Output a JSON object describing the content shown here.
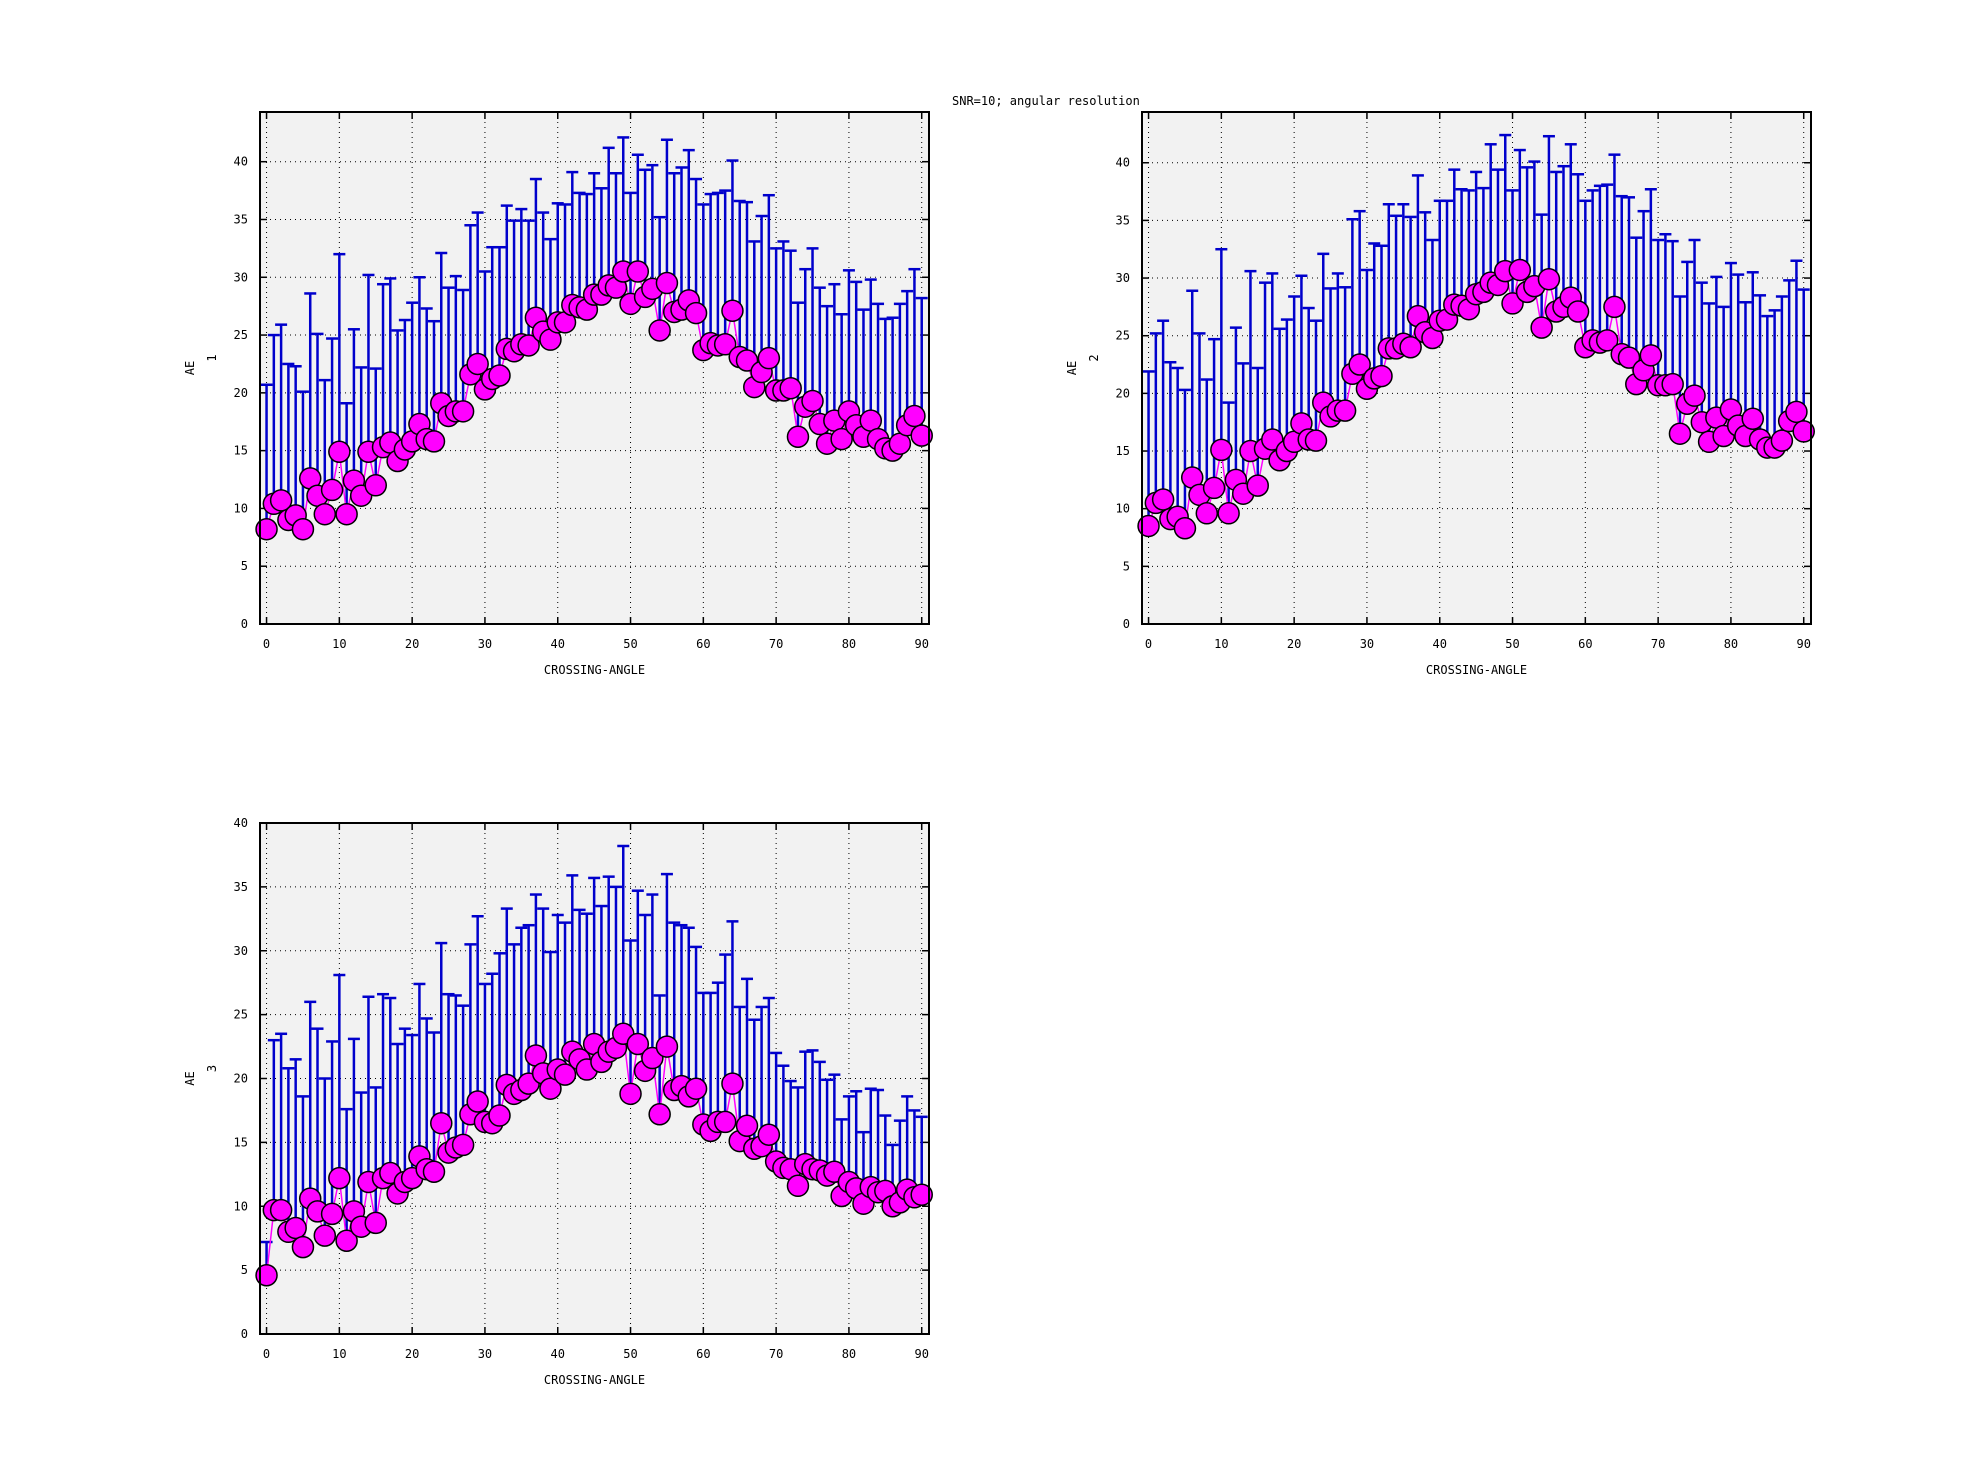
{
  "title": "SNR=10; angular resolution",
  "colors": {
    "plot_bg": "#f2f2f2",
    "errorbar": "#0000cc",
    "marker": "#ff00ff",
    "marker_edge": "#000000",
    "line": "#ff00ff"
  },
  "chart_data": [
    {
      "type": "scatter",
      "title": "",
      "xlabel": "CROSSING-ANGLE",
      "ylabel": "AE",
      "ylabel_sub": "1",
      "xlim": [
        -0.9,
        91
      ],
      "ylim": [
        0,
        44.3
      ],
      "xticks": [
        0,
        10,
        20,
        30,
        40,
        50,
        60,
        70,
        80,
        90
      ],
      "yticks": [
        0,
        5,
        10,
        15,
        20,
        25,
        30,
        35,
        40
      ],
      "grid": true,
      "mean": [
        8.2,
        10.4,
        10.7,
        9.0,
        9.4,
        8.2,
        12.6,
        11.1,
        9.5,
        11.6,
        14.9,
        9.5,
        12.4,
        11.1,
        14.9,
        12.0,
        15.3,
        15.7,
        14.1,
        15.1,
        15.8,
        17.3,
        16.0,
        15.8,
        19.1,
        18.0,
        18.4,
        18.4,
        21.6,
        22.5,
        20.3,
        21.2,
        21.5,
        23.8,
        23.6,
        24.2,
        24.1,
        26.5,
        25.3,
        24.6,
        26.1,
        26.1,
        27.6,
        27.4,
        27.2,
        28.5,
        28.5,
        29.3,
        29.1,
        30.5,
        27.7,
        30.5,
        28.3,
        29.0,
        25.4,
        29.5,
        27.0,
        27.2,
        28.0,
        26.9,
        23.7,
        24.3,
        24.1,
        24.2,
        27.1,
        23.1,
        22.8,
        20.5,
        21.8,
        23.0,
        20.2,
        20.2,
        20.4,
        16.2,
        18.8,
        19.3,
        17.3,
        15.6,
        17.6,
        16.0,
        18.4,
        17.2,
        16.2,
        17.6,
        16.0,
        15.2,
        15.0,
        15.6,
        17.2,
        18.0,
        16.3
      ],
      "upper": [
        20.7,
        25.0,
        25.9,
        22.5,
        22.3,
        20.1,
        28.6,
        25.1,
        21.1,
        24.7,
        32.0,
        19.1,
        25.5,
        22.2,
        30.2,
        22.1,
        29.4,
        29.9,
        25.4,
        26.3,
        27.8,
        30.0,
        27.3,
        26.2,
        32.1,
        29.1,
        30.1,
        28.9,
        34.5,
        35.6,
        30.5,
        32.6,
        32.6,
        36.2,
        34.9,
        35.9,
        34.9,
        38.5,
        35.6,
        33.3,
        36.4,
        36.3,
        39.1,
        37.3,
        37.2,
        39.0,
        37.7,
        41.2,
        39.0,
        42.1,
        37.3,
        40.6,
        39.3,
        39.7,
        35.2,
        41.9,
        39.0,
        39.5,
        41.0,
        38.5,
        36.3,
        37.2,
        37.3,
        37.5,
        40.1,
        36.6,
        36.5,
        33.1,
        35.3,
        37.1,
        32.5,
        33.1,
        32.3,
        27.8,
        30.7,
        32.5,
        29.1,
        27.5,
        29.4,
        26.8,
        30.6,
        29.6,
        27.2,
        29.8,
        27.7,
        26.4,
        26.5,
        27.7,
        28.8,
        30.7,
        28.2
      ]
    },
    {
      "type": "scatter",
      "title": "",
      "xlabel": "CROSSING-ANGLE",
      "ylabel": "AE",
      "ylabel_sub": "2",
      "xlim": [
        -0.9,
        91
      ],
      "ylim": [
        0,
        44.4
      ],
      "xticks": [
        0,
        10,
        20,
        30,
        40,
        50,
        60,
        70,
        80,
        90
      ],
      "yticks": [
        0,
        5,
        10,
        15,
        20,
        25,
        30,
        35,
        40
      ],
      "grid": true,
      "mean": [
        8.5,
        10.5,
        10.8,
        9.1,
        9.3,
        8.3,
        12.7,
        11.2,
        9.6,
        11.8,
        15.1,
        9.6,
        12.5,
        11.3,
        15.0,
        12.0,
        15.2,
        16.0,
        14.2,
        15.0,
        15.8,
        17.4,
        16.0,
        15.9,
        19.2,
        18.0,
        18.5,
        18.5,
        21.7,
        22.5,
        20.4,
        21.3,
        21.5,
        23.9,
        23.9,
        24.3,
        24.0,
        26.7,
        25.3,
        24.8,
        26.3,
        26.4,
        27.7,
        27.6,
        27.3,
        28.6,
        28.8,
        29.6,
        29.4,
        30.6,
        27.8,
        30.7,
        28.8,
        29.3,
        25.7,
        29.9,
        27.1,
        27.5,
        28.3,
        27.1,
        24.0,
        24.6,
        24.4,
        24.6,
        27.5,
        23.4,
        23.1,
        20.8,
        22.0,
        23.3,
        20.7,
        20.7,
        20.8,
        16.5,
        19.1,
        19.8,
        17.5,
        15.8,
        17.9,
        16.3,
        18.6,
        17.2,
        16.3,
        17.8,
        16.0,
        15.3,
        15.3,
        15.9,
        17.6,
        18.4,
        16.7
      ],
      "upper": [
        21.9,
        25.2,
        26.3,
        22.7,
        22.2,
        20.3,
        28.9,
        25.2,
        21.2,
        24.7,
        32.5,
        19.2,
        25.7,
        22.6,
        30.6,
        22.2,
        29.6,
        30.4,
        25.6,
        26.4,
        28.4,
        30.2,
        27.4,
        26.3,
        32.1,
        29.1,
        30.4,
        29.2,
        35.1,
        35.8,
        30.7,
        33.0,
        32.8,
        36.4,
        35.4,
        36.4,
        35.3,
        38.9,
        35.7,
        33.3,
        36.7,
        36.7,
        39.4,
        37.7,
        37.6,
        39.2,
        37.8,
        41.6,
        39.4,
        42.4,
        37.6,
        41.1,
        39.6,
        40.1,
        35.5,
        42.3,
        39.2,
        39.7,
        41.6,
        39.0,
        36.7,
        37.6,
        38.0,
        38.1,
        40.7,
        37.1,
        37.0,
        33.5,
        35.8,
        37.7,
        33.3,
        33.8,
        33.2,
        28.4,
        31.4,
        33.3,
        29.6,
        27.8,
        30.1,
        27.5,
        31.3,
        30.3,
        27.9,
        30.5,
        28.5,
        26.7,
        27.2,
        28.4,
        29.8,
        31.5,
        29.0
      ]
    },
    {
      "type": "scatter",
      "title": "",
      "xlabel": "CROSSING-ANGLE",
      "ylabel": "AE",
      "ylabel_sub": "3",
      "xlim": [
        -0.9,
        91
      ],
      "ylim": [
        0,
        40
      ],
      "xticks": [
        0,
        10,
        20,
        30,
        40,
        50,
        60,
        70,
        80,
        90
      ],
      "yticks": [
        0,
        5,
        10,
        15,
        20,
        25,
        30,
        35,
        40
      ],
      "grid": true,
      "mean": [
        4.6,
        9.7,
        9.7,
        8.0,
        8.3,
        6.8,
        10.6,
        9.6,
        7.7,
        9.4,
        12.2,
        7.3,
        9.6,
        8.4,
        11.9,
        8.7,
        12.2,
        12.6,
        11.0,
        11.9,
        12.2,
        13.9,
        12.9,
        12.7,
        16.5,
        14.2,
        14.6,
        14.8,
        17.2,
        18.2,
        16.6,
        16.5,
        17.1,
        19.5,
        18.8,
        19.1,
        19.6,
        21.8,
        20.4,
        19.2,
        20.7,
        20.3,
        22.1,
        21.5,
        20.7,
        22.7,
        21.3,
        22.1,
        22.4,
        23.5,
        18.8,
        22.7,
        20.6,
        21.6,
        17.2,
        22.5,
        19.1,
        19.4,
        18.6,
        19.2,
        16.4,
        15.9,
        16.6,
        16.6,
        19.6,
        15.1,
        16.3,
        14.5,
        14.7,
        15.6,
        13.5,
        13.0,
        12.9,
        11.6,
        13.3,
        12.9,
        12.8,
        12.4,
        12.7,
        10.8,
        11.9,
        11.4,
        10.2,
        11.5,
        11.1,
        11.2,
        10.0,
        10.3,
        11.3,
        10.7,
        10.9
      ],
      "upper": [
        7.2,
        23.0,
        23.5,
        20.8,
        21.5,
        18.6,
        26.0,
        23.9,
        20.0,
        22.9,
        28.1,
        17.6,
        23.1,
        18.9,
        26.4,
        19.3,
        26.6,
        26.3,
        22.7,
        23.9,
        23.4,
        27.4,
        24.7,
        23.6,
        30.6,
        26.6,
        26.5,
        25.7,
        30.5,
        32.7,
        27.4,
        28.2,
        29.8,
        33.3,
        30.5,
        31.8,
        32.0,
        34.4,
        33.3,
        29.9,
        32.8,
        32.2,
        35.9,
        33.2,
        32.9,
        35.7,
        33.5,
        35.8,
        35.0,
        38.2,
        30.8,
        34.7,
        32.8,
        34.4,
        26.5,
        36.0,
        32.2,
        32.0,
        31.8,
        30.3,
        26.7,
        26.7,
        27.5,
        29.7,
        32.3,
        25.6,
        27.8,
        24.6,
        25.6,
        26.3,
        22.0,
        21.0,
        19.8,
        19.3,
        22.1,
        22.2,
        21.3,
        19.9,
        20.3,
        16.8,
        18.6,
        19.0,
        15.8,
        19.2,
        19.1,
        17.1,
        14.8,
        16.7,
        18.6,
        17.5,
        17.0
      ]
    }
  ]
}
